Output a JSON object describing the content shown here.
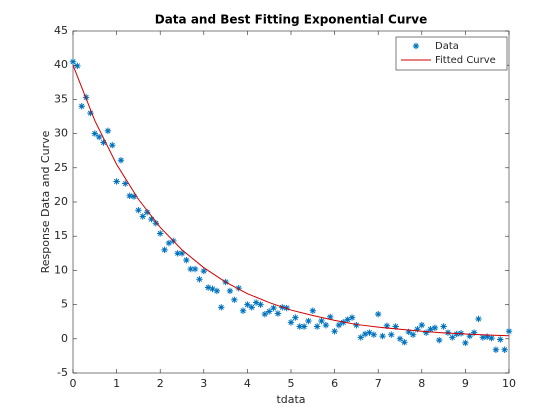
{
  "chart_data": {
    "type": "scatter",
    "title": "Data and Best Fitting Exponential Curve",
    "xlabel": "tdata",
    "ylabel": "Response Data and Curve",
    "xlim": [
      0,
      10
    ],
    "ylim": [
      -5,
      45
    ],
    "xticks": [
      0,
      1,
      2,
      3,
      4,
      5,
      6,
      7,
      8,
      9,
      10
    ],
    "yticks": [
      -5,
      0,
      5,
      10,
      15,
      20,
      25,
      30,
      35,
      40,
      45
    ],
    "legend_position": "northeast",
    "series": [
      {
        "name": "Data",
        "kind": "scatter",
        "color": "#0072bd",
        "x": [
          0,
          0.1,
          0.2,
          0.3,
          0.4,
          0.5,
          0.6,
          0.7,
          0.8,
          0.9,
          1,
          1.1,
          1.2,
          1.3,
          1.4,
          1.5,
          1.6,
          1.7,
          1.8,
          1.9,
          2,
          2.1,
          2.2,
          2.3,
          2.4,
          2.5,
          2.6,
          2.7,
          2.8,
          2.9,
          3,
          3.1,
          3.2,
          3.3,
          3.4,
          3.5,
          3.6,
          3.7,
          3.8,
          3.9,
          4,
          4.1,
          4.2,
          4.3,
          4.4,
          4.5,
          4.6,
          4.7,
          4.8,
          4.9,
          5,
          5.1,
          5.2,
          5.3,
          5.4,
          5.5,
          5.6,
          5.7,
          5.8,
          5.9,
          6,
          6.1,
          6.2,
          6.3,
          6.4,
          6.5,
          6.6,
          6.7,
          6.8,
          6.9,
          7,
          7.1,
          7.2,
          7.3,
          7.4,
          7.5,
          7.6,
          7.7,
          7.8,
          7.9,
          8,
          8.1,
          8.2,
          8.3,
          8.4,
          8.5,
          8.6,
          8.7,
          8.8,
          8.9,
          9,
          9.1,
          9.2,
          9.3,
          9.4,
          9.5,
          9.6,
          9.7,
          9.8,
          9.9,
          10
        ],
        "values": [
          40.5,
          39.9,
          34,
          35.3,
          33,
          30,
          29.5,
          28.7,
          30.4,
          28.3,
          23,
          26.1,
          22.7,
          20.9,
          20.8,
          18.8,
          17.9,
          18.5,
          17.5,
          16.9,
          15.4,
          13,
          14,
          14.3,
          12.5,
          12.5,
          11.5,
          10.2,
          10.2,
          8.7,
          9.9,
          7.5,
          7.3,
          7,
          4.6,
          8.3,
          7,
          5.7,
          7.4,
          4.1,
          5,
          4.6,
          5.3,
          5,
          3.6,
          4,
          4.5,
          3.7,
          4.6,
          4.5,
          2.4,
          3.1,
          1.8,
          1.8,
          2.6,
          4.1,
          1.8,
          2.6,
          2,
          3.2,
          1.1,
          2,
          2.4,
          2.8,
          3.1,
          2,
          0.2,
          0.7,
          0.9,
          0.6,
          3.6,
          0.4,
          1.9,
          0.6,
          1.8,
          0,
          -0.5,
          1,
          0.6,
          1.4,
          2,
          0.9,
          1.4,
          1.6,
          -0.2,
          1.8,
          0.9,
          0.2,
          0.7,
          0.8,
          -0.6,
          0.4,
          0.9,
          2.9,
          0.2,
          0.3,
          0.1,
          -1.6,
          -0.1,
          -1.6,
          1.1
        ]
      },
      {
        "name": "Fitted Curve",
        "kind": "line",
        "color": "#d00000",
        "x": [
          0,
          0.5,
          1,
          1.5,
          2,
          2.5,
          3,
          3.5,
          4,
          4.5,
          5,
          5.5,
          6,
          6.5,
          7,
          7.5,
          8,
          8.5,
          9,
          9.5,
          10
        ],
        "values": [
          40,
          31.9,
          25.5,
          20.4,
          16.3,
          13,
          10.4,
          8.3,
          6.6,
          5.3,
          4.2,
          3.4,
          2.7,
          2.1,
          1.7,
          1.4,
          1.1,
          0.87,
          0.7,
          0.55,
          0.44
        ]
      }
    ]
  }
}
